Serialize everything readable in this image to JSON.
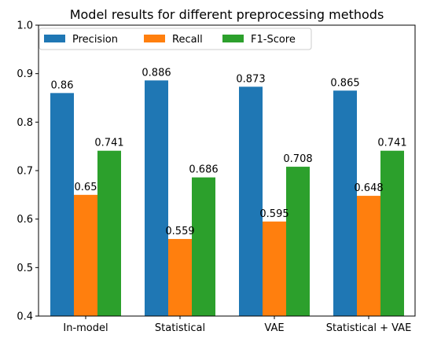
{
  "chart_data": {
    "type": "bar",
    "title": "Model results for different preprocessing methods",
    "xlabel": "",
    "ylabel": "",
    "ylim": [
      0.4,
      1.0
    ],
    "yticks": [
      "0.4",
      "0.5",
      "0.6",
      "0.7",
      "0.8",
      "0.9",
      "1.0"
    ],
    "categories": [
      "In-model",
      "Statistical",
      "VAE",
      "Statistical + VAE"
    ],
    "series": [
      {
        "name": "Precision",
        "color": "#1f77b4",
        "values": [
          0.86,
          0.886,
          0.873,
          0.865
        ],
        "labels": [
          "0.86",
          "0.886",
          "0.873",
          "0.865"
        ]
      },
      {
        "name": "Recall",
        "color": "#ff7f0e",
        "values": [
          0.65,
          0.559,
          0.595,
          0.648
        ],
        "labels": [
          "0.65",
          "0.559",
          "0.595",
          "0.648"
        ]
      },
      {
        "name": "F1-Score",
        "color": "#2ca02c",
        "values": [
          0.741,
          0.686,
          0.708,
          0.741
        ],
        "labels": [
          "0.741",
          "0.686",
          "0.708",
          "0.741"
        ]
      }
    ],
    "legend_position": "top-left",
    "grid": false
  }
}
